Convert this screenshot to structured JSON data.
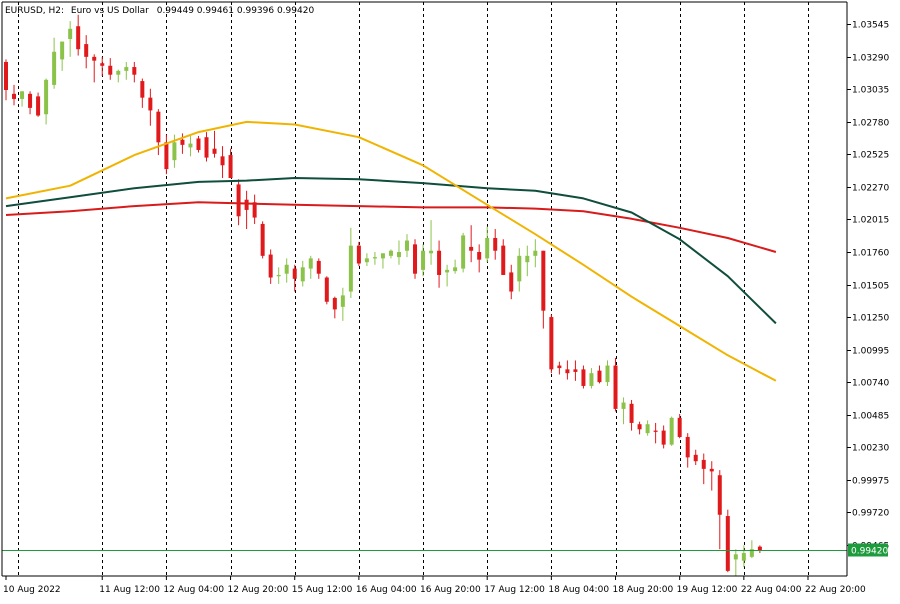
{
  "header": {
    "symbol": "EURUSD, H2:",
    "description": "Euro vs US Dollar",
    "ohlc": "0.99449 0.99461 0.99396 0.99420"
  },
  "price_tag": "0.99420",
  "colors": {
    "bull": "#8bc34a",
    "bear": "#e0191c",
    "ma_fast": "#f0b400",
    "ma_mid": "#0f4d3c",
    "ma_slow": "#d81b1b",
    "price_line": "#1e9b3c",
    "grid": "#000000",
    "axis": "#000000"
  },
  "chart_data": {
    "type": "candlestick",
    "title": "EURUSD, H2: Euro vs US Dollar",
    "ylim": [
      0.9922,
      1.0372
    ],
    "y_ticks": [
      "1.03545",
      "1.03290",
      "1.03035",
      "1.02780",
      "1.02525",
      "1.02270",
      "1.02015",
      "1.01760",
      "1.01505",
      "1.01250",
      "1.00995",
      "1.00740",
      "1.00485",
      "1.00230",
      "0.99975",
      "0.99720",
      "0.99465"
    ],
    "x_labels": [
      "10 Aug 2022",
      "11 Aug 12:00",
      "12 Aug 04:00",
      "12 Aug 20:00",
      "15 Aug 12:00",
      "16 Aug 04:00",
      "16 Aug 20:00",
      "17 Aug 12:00",
      "18 Aug 04:00",
      "18 Aug 20:00",
      "19 Aug 12:00",
      "22 Aug 04:00",
      "22 Aug 20:00"
    ],
    "x_label_index": [
      0,
      12,
      20,
      28,
      36,
      44,
      52,
      60,
      68,
      76,
      84,
      92,
      100
    ],
    "grid": "vertical-dashed",
    "candles": [
      [
        1.0325,
        1.0327,
        1.0295,
        1.0303
      ],
      [
        1.03,
        1.0307,
        1.0291,
        1.0296
      ],
      [
        1.0296,
        1.0302,
        1.029,
        1.0302
      ],
      [
        1.03,
        1.0302,
        1.0284,
        1.0289
      ],
      [
        1.0298,
        1.0301,
        1.0282,
        1.0283
      ],
      [
        1.0284,
        1.0312,
        1.0276,
        1.0311
      ],
      [
        1.0307,
        1.0344,
        1.0304,
        1.0333
      ],
      [
        1.0327,
        1.034,
        1.0318,
        1.0341
      ],
      [
        1.0343,
        1.0357,
        1.0329,
        1.0351
      ],
      [
        1.0353,
        1.0362,
        1.033,
        1.0335
      ],
      [
        1.0339,
        1.0346,
        1.032,
        1.0329
      ],
      [
        1.0329,
        1.0331,
        1.0309,
        1.0326
      ],
      [
        1.0324,
        1.0329,
        1.0314,
        1.0322
      ],
      [
        1.0322,
        1.0328,
        1.0311,
        1.0315
      ],
      [
        1.0315,
        1.0319,
        1.0309,
        1.0318
      ],
      [
        1.0318,
        1.0325,
        1.0311,
        1.0321
      ],
      [
        1.0321,
        1.0325,
        1.0309,
        1.0315
      ],
      [
        1.031,
        1.0312,
        1.0289,
        1.0297
      ],
      [
        1.0297,
        1.0304,
        1.0275,
        1.0287
      ],
      [
        1.0286,
        1.0288,
        1.0252,
        1.0262
      ],
      [
        1.0262,
        1.0268,
        1.0237,
        1.0241
      ],
      [
        1.0248,
        1.0268,
        1.0242,
        1.0262
      ],
      [
        1.0264,
        1.0269,
        1.0253,
        1.026
      ],
      [
        1.0258,
        1.0268,
        1.0251,
        1.0261
      ],
      [
        1.0265,
        1.0267,
        1.0254,
        1.0256
      ],
      [
        1.0266,
        1.027,
        1.0247,
        1.025
      ],
      [
        1.0257,
        1.0271,
        1.025,
        1.0253
      ],
      [
        1.0251,
        1.0259,
        1.0234,
        1.0244
      ],
      [
        1.0252,
        1.0257,
        1.0234,
        1.0234
      ],
      [
        1.0229,
        1.0233,
        1.0197,
        1.0204
      ],
      [
        1.0217,
        1.0224,
        1.0194,
        1.0209
      ],
      [
        1.0215,
        1.0221,
        1.0198,
        1.0203
      ],
      [
        1.0198,
        1.02,
        1.0171,
        1.0173
      ],
      [
        1.0174,
        1.0178,
        1.0151,
        1.0156
      ],
      [
        1.0157,
        1.0164,
        1.0151,
        1.0158
      ],
      [
        1.0159,
        1.0171,
        1.0152,
        1.0166
      ],
      [
        1.0163,
        1.0166,
        1.0145,
        1.0155
      ],
      [
        1.0153,
        1.0169,
        1.0149,
        1.0164
      ],
      [
        1.0163,
        1.0173,
        1.0155,
        1.0171
      ],
      [
        1.0169,
        1.0171,
        1.0155,
        1.0159
      ],
      [
        1.0156,
        1.0157,
        1.0135,
        1.0137
      ],
      [
        1.014,
        1.0141,
        1.0124,
        1.0131
      ],
      [
        1.0133,
        1.0148,
        1.0122,
        1.0142
      ],
      [
        1.0145,
        1.0195,
        1.014,
        1.0181
      ],
      [
        1.0181,
        1.0184,
        1.0165,
        1.0167
      ],
      [
        1.0168,
        1.0175,
        1.0165,
        1.0171
      ],
      [
        1.0171,
        1.0176,
        1.0166,
        1.0172
      ],
      [
        1.0171,
        1.0175,
        1.0163,
        1.0175
      ],
      [
        1.0173,
        1.0178,
        1.0171,
        1.0177
      ],
      [
        1.0172,
        1.0185,
        1.0166,
        1.0176
      ],
      [
        1.0177,
        1.019,
        1.0172,
        1.0185
      ],
      [
        1.0182,
        1.0186,
        1.0155,
        1.0159
      ],
      [
        1.0162,
        1.0182,
        1.0157,
        1.0177
      ],
      [
        1.0175,
        1.0201,
        1.0166,
        1.0177
      ],
      [
        1.0177,
        1.0185,
        1.0148,
        1.0158
      ],
      [
        1.016,
        1.0166,
        1.0149,
        1.0162
      ],
      [
        1.0161,
        1.017,
        1.0159,
        1.0164
      ],
      [
        1.0163,
        1.0191,
        1.016,
        1.0189
      ],
      [
        1.018,
        1.0197,
        1.0168,
        1.0177
      ],
      [
        1.0176,
        1.0182,
        1.016,
        1.017
      ],
      [
        1.0171,
        1.0196,
        1.0168,
        1.0187
      ],
      [
        1.0187,
        1.0194,
        1.017,
        1.0177
      ],
      [
        1.0181,
        1.0186,
        1.0158,
        1.0158
      ],
      [
        1.016,
        1.0166,
        1.0139,
        1.0145
      ],
      [
        1.0153,
        1.0179,
        1.0145,
        1.0173
      ],
      [
        1.0168,
        1.0181,
        1.0157,
        1.0173
      ],
      [
        1.0173,
        1.0186,
        1.0164,
        1.0177
      ],
      [
        1.0177,
        1.0177,
        1.0116,
        1.013
      ],
      [
        1.0125,
        1.0127,
        1.0081,
        1.0084
      ],
      [
        1.0087,
        1.009,
        1.008,
        1.0085
      ],
      [
        1.0084,
        1.0091,
        1.0076,
        1.0081
      ],
      [
        1.0084,
        1.0091,
        1.0075,
        1.0082
      ],
      [
        1.0084,
        1.0087,
        1.0069,
        1.0071
      ],
      [
        1.0071,
        1.0085,
        1.0069,
        1.0081
      ],
      [
        1.0083,
        1.0087,
        1.0073,
        1.0074
      ],
      [
        1.0074,
        1.0091,
        1.0071,
        1.0087
      ],
      [
        1.0087,
        1.0093,
        1.0051,
        1.0053
      ],
      [
        1.0053,
        1.0062,
        1.0041,
        1.0058
      ],
      [
        1.0057,
        1.006,
        1.0036,
        1.0042
      ],
      [
        1.0041,
        1.0043,
        1.0033,
        1.0037
      ],
      [
        1.0034,
        1.0044,
        1.0032,
        1.0041
      ],
      [
        1.0036,
        1.0042,
        1.0026,
        1.0035
      ],
      [
        1.0036,
        1.004,
        1.0022,
        1.0025
      ],
      [
        1.0025,
        1.0047,
        1.0024,
        1.0046
      ],
      [
        1.0046,
        1.0049,
        1.003,
        1.0031
      ],
      [
        1.0031,
        1.0034,
        1.0007,
        1.0015
      ],
      [
        1.0017,
        1.0021,
        1.0009,
        1.0012
      ],
      [
        1.0013,
        1.0018,
        0.9994,
        1.0006
      ],
      [
        1.0006,
        1.0012,
        0.9989,
        1.0004
      ],
      [
        1.0001,
        1.0005,
        0.9943,
        0.997
      ],
      [
        0.9969,
        0.9974,
        0.9925,
        0.9926
      ],
      [
        0.9935,
        0.9943,
        0.9922,
        0.9939
      ],
      [
        0.9934,
        0.9946,
        0.9929,
        0.994
      ],
      [
        0.9937,
        0.995,
        0.9936,
        0.9943
      ],
      [
        0.9945,
        0.9946,
        0.994,
        0.9942
      ]
    ],
    "ma_fast": [
      [
        0,
        1.0218
      ],
      [
        8,
        1.0228
      ],
      [
        16,
        1.0252
      ],
      [
        24,
        1.027
      ],
      [
        30,
        1.0278
      ],
      [
        36,
        1.0276
      ],
      [
        44,
        1.0266
      ],
      [
        52,
        1.0244
      ],
      [
        60,
        1.0213
      ],
      [
        66,
        1.019
      ],
      [
        72,
        1.0166
      ],
      [
        78,
        1.0141
      ],
      [
        84,
        1.0118
      ],
      [
        90,
        1.0095
      ],
      [
        96,
        1.0075
      ]
    ],
    "ma_mid": [
      [
        0,
        1.0212
      ],
      [
        8,
        1.0219
      ],
      [
        16,
        1.0226
      ],
      [
        24,
        1.0231
      ],
      [
        30,
        1.0232
      ],
      [
        36,
        1.0234
      ],
      [
        44,
        1.0233
      ],
      [
        52,
        1.023
      ],
      [
        60,
        1.0226
      ],
      [
        66,
        1.0224
      ],
      [
        72,
        1.0218
      ],
      [
        78,
        1.0207
      ],
      [
        84,
        1.0186
      ],
      [
        90,
        1.0157
      ],
      [
        96,
        1.012
      ]
    ],
    "ma_slow": [
      [
        0,
        1.0205
      ],
      [
        8,
        1.0208
      ],
      [
        16,
        1.0212
      ],
      [
        24,
        1.0215
      ],
      [
        30,
        1.0214
      ],
      [
        36,
        1.0213
      ],
      [
        44,
        1.0212
      ],
      [
        52,
        1.0211
      ],
      [
        60,
        1.0211
      ],
      [
        66,
        1.021
      ],
      [
        72,
        1.0208
      ],
      [
        78,
        1.0202
      ],
      [
        84,
        1.0195
      ],
      [
        90,
        1.0187
      ],
      [
        96,
        1.0176
      ]
    ]
  }
}
